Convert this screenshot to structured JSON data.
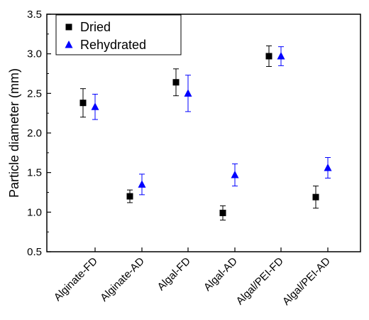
{
  "chart_data": {
    "type": "scatter",
    "xlabel": "",
    "ylabel": "Particle diameter (mm)",
    "categories": [
      "Alginate-FD",
      "Alginate-AD",
      "Algal-FD",
      "Algal-AD",
      "Algal/PEI-FD",
      "Algal/PEI-AD"
    ],
    "ylim": [
      0.5,
      3.5
    ],
    "yticks": [
      "0.5",
      "1.0",
      "1.5",
      "2.0",
      "2.5",
      "3.0",
      "3.5"
    ],
    "grid": false,
    "legend_position": "top-left",
    "series": [
      {
        "name": "Dried",
        "marker": "square",
        "color": "#000000",
        "values": [
          2.38,
          1.2,
          2.64,
          0.99,
          2.97,
          1.19
        ],
        "errors": [
          0.18,
          0.08,
          0.17,
          0.09,
          0.13,
          0.14
        ]
      },
      {
        "name": "Rehydrated",
        "marker": "triangle",
        "color": "#0000ff",
        "values": [
          2.33,
          1.35,
          2.5,
          1.47,
          2.97,
          1.56
        ],
        "errors": [
          0.16,
          0.13,
          0.23,
          0.14,
          0.12,
          0.13
        ]
      }
    ]
  }
}
